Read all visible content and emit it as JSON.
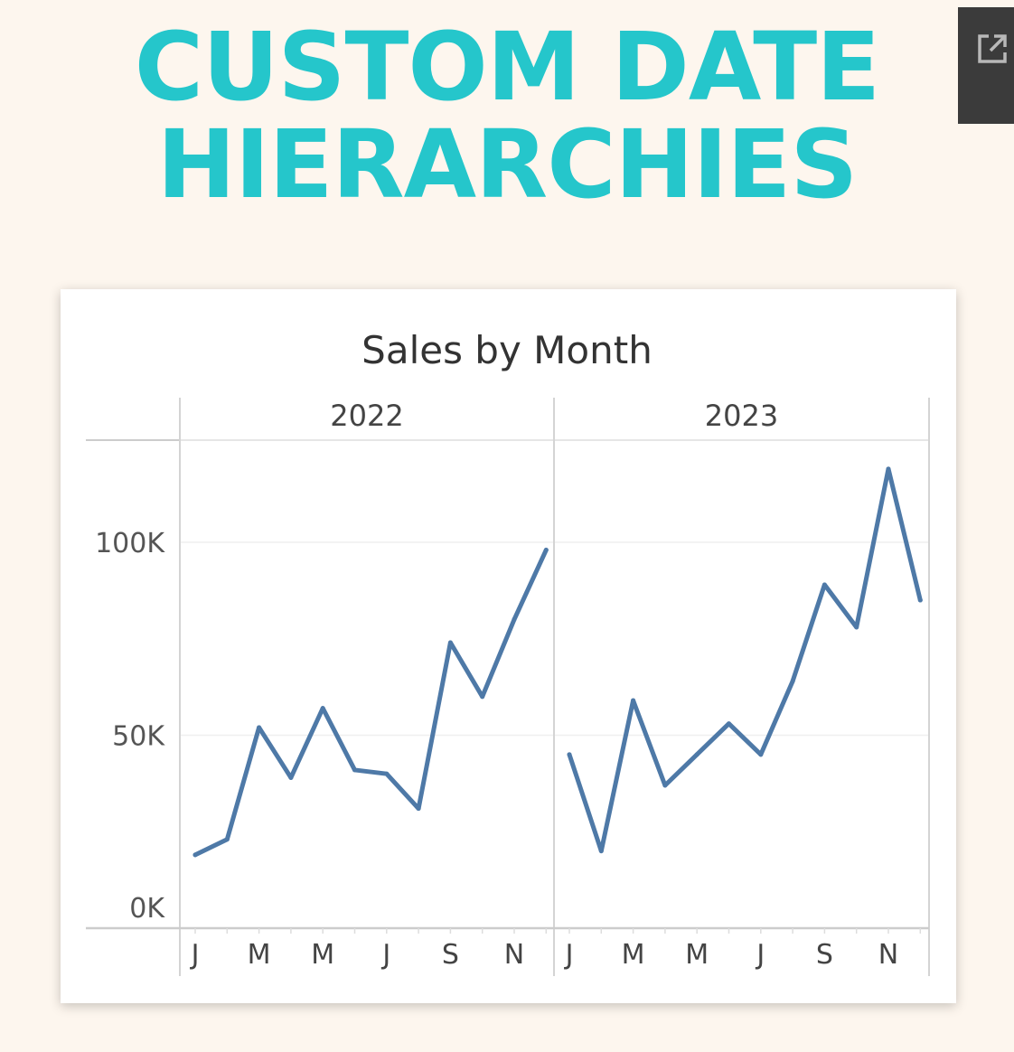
{
  "headline": {
    "line1": "CUSTOM DATE",
    "line2": "HIERARCHIES"
  },
  "popout_button": {
    "icon": "external-link-icon"
  },
  "colors": {
    "background": "#fdf6ee",
    "headline": "#25c6cb",
    "line": "#4e79a7",
    "popout_bg": "#3b3b3b"
  },
  "chart_data": {
    "type": "line",
    "title": "Sales by Month",
    "xlabel": "",
    "ylabel": "",
    "ylim": [
      0,
      125000
    ],
    "yticks": [
      0,
      50000,
      100000
    ],
    "ytick_labels": [
      "0K",
      "50K",
      "100K"
    ],
    "xtick_labels": [
      "J",
      "M",
      "M",
      "J",
      "S",
      "N"
    ],
    "grid": true,
    "panels": [
      {
        "label": "2022",
        "months": [
          "Jan",
          "Feb",
          "Mar",
          "Apr",
          "May",
          "Jun",
          "Jul",
          "Aug",
          "Sep",
          "Oct",
          "Nov",
          "Dec"
        ],
        "values": [
          19000,
          23000,
          52000,
          39000,
          57000,
          41000,
          40000,
          31000,
          74000,
          60000,
          80000,
          98000
        ]
      },
      {
        "label": "2023",
        "months": [
          "Jan",
          "Feb",
          "Mar",
          "Apr",
          "May",
          "Jun",
          "Jul",
          "Aug",
          "Sep",
          "Oct",
          "Nov",
          "Dec"
        ],
        "values": [
          45000,
          20000,
          59000,
          37000,
          45000,
          53000,
          45000,
          64000,
          89000,
          78000,
          119000,
          85000
        ]
      }
    ]
  }
}
